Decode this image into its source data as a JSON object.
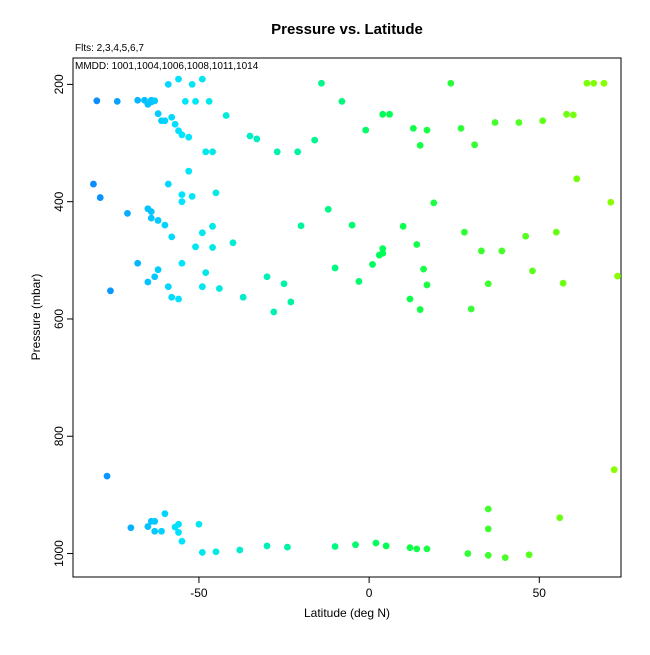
{
  "chart_data": {
    "type": "scatter",
    "title": "Pressure vs. Latitude",
    "subtitle_fits": "Flts: 2,3,4,5,6,7",
    "subtitle_dates": "MMDD: 1001,1004,1006,1008,1011,1014",
    "xlabel": "Latitude (deg N)",
    "ylabel": "Pressure (mbar)",
    "xlim": [
      -87,
      74
    ],
    "ylim": [
      1040,
      155
    ],
    "y_reversed": true,
    "grid": false,
    "x_ticks": [
      -50,
      0,
      50
    ],
    "x_tick_labels": [
      "-50",
      "0",
      "50"
    ],
    "y_ticks": [
      200,
      400,
      600,
      800,
      1000
    ],
    "y_tick_labels": [
      "200",
      "400",
      "600",
      "800",
      "1000"
    ],
    "color_note": "points colored by latitude from blue (south) through cyan and green to yellow-green (north)",
    "color_stops": [
      "#0b8cff",
      "#00e5ff",
      "#00ff55",
      "#88ff00"
    ],
    "points": [
      {
        "x": -80,
        "y": 228
      },
      {
        "x": -74,
        "y": 229
      },
      {
        "x": -68,
        "y": 227
      },
      {
        "x": -66,
        "y": 227
      },
      {
        "x": -65,
        "y": 234
      },
      {
        "x": -64,
        "y": 230
      },
      {
        "x": -64,
        "y": 227
      },
      {
        "x": -63,
        "y": 228
      },
      {
        "x": -62,
        "y": 250
      },
      {
        "x": -61,
        "y": 262
      },
      {
        "x": -60,
        "y": 262
      },
      {
        "x": -58,
        "y": 256
      },
      {
        "x": -57,
        "y": 268
      },
      {
        "x": -56,
        "y": 279
      },
      {
        "x": -55,
        "y": 286
      },
      {
        "x": -53,
        "y": 290
      },
      {
        "x": -59,
        "y": 200
      },
      {
        "x": -56,
        "y": 191
      },
      {
        "x": -52,
        "y": 200
      },
      {
        "x": -49,
        "y": 191
      },
      {
        "x": -54,
        "y": 229
      },
      {
        "x": -51,
        "y": 229
      },
      {
        "x": -47,
        "y": 229
      },
      {
        "x": -42,
        "y": 253
      },
      {
        "x": -48,
        "y": 315
      },
      {
        "x": -46,
        "y": 315
      },
      {
        "x": -35,
        "y": 288
      },
      {
        "x": -33,
        "y": 293
      },
      {
        "x": -27,
        "y": 315
      },
      {
        "x": -21,
        "y": 315
      },
      {
        "x": -16,
        "y": 295
      },
      {
        "x": -14,
        "y": 198
      },
      {
        "x": -8,
        "y": 229
      },
      {
        "x": -1,
        "y": 278
      },
      {
        "x": 4,
        "y": 251
      },
      {
        "x": 6,
        "y": 251
      },
      {
        "x": 13,
        "y": 275
      },
      {
        "x": 15,
        "y": 304
      },
      {
        "x": 17,
        "y": 278
      },
      {
        "x": 24,
        "y": 198
      },
      {
        "x": 27,
        "y": 275
      },
      {
        "x": 31,
        "y": 303
      },
      {
        "x": 37,
        "y": 265
      },
      {
        "x": 44,
        "y": 265
      },
      {
        "x": 51,
        "y": 262
      },
      {
        "x": 58,
        "y": 251
      },
      {
        "x": 60,
        "y": 252
      },
      {
        "x": 64,
        "y": 198
      },
      {
        "x": 66,
        "y": 198
      },
      {
        "x": 69,
        "y": 198
      },
      {
        "x": -81,
        "y": 370
      },
      {
        "x": -79,
        "y": 393
      },
      {
        "x": -71,
        "y": 420
      },
      {
        "x": -65,
        "y": 412
      },
      {
        "x": -64,
        "y": 417
      },
      {
        "x": -64,
        "y": 428
      },
      {
        "x": -62,
        "y": 432
      },
      {
        "x": -60,
        "y": 440
      },
      {
        "x": -59,
        "y": 370
      },
      {
        "x": -58,
        "y": 460
      },
      {
        "x": -55,
        "y": 400
      },
      {
        "x": -55,
        "y": 388
      },
      {
        "x": -53,
        "y": 348
      },
      {
        "x": -52,
        "y": 391
      },
      {
        "x": -49,
        "y": 453
      },
      {
        "x": -46,
        "y": 442
      },
      {
        "x": -45,
        "y": 385
      },
      {
        "x": -51,
        "y": 477
      },
      {
        "x": -46,
        "y": 478
      },
      {
        "x": -40,
        "y": 470
      },
      {
        "x": -20,
        "y": 441
      },
      {
        "x": -12,
        "y": 413
      },
      {
        "x": -5,
        "y": 440
      },
      {
        "x": 10,
        "y": 442
      },
      {
        "x": 14,
        "y": 473
      },
      {
        "x": 19,
        "y": 402
      },
      {
        "x": 28,
        "y": 452
      },
      {
        "x": 33,
        "y": 484
      },
      {
        "x": 39,
        "y": 484
      },
      {
        "x": 46,
        "y": 459
      },
      {
        "x": 55,
        "y": 452
      },
      {
        "x": 61,
        "y": 361
      },
      {
        "x": 71,
        "y": 401
      },
      {
        "x": -68,
        "y": 505
      },
      {
        "x": -63,
        "y": 528
      },
      {
        "x": -62,
        "y": 516
      },
      {
        "x": -65,
        "y": 537
      },
      {
        "x": -59,
        "y": 545
      },
      {
        "x": -55,
        "y": 505
      },
      {
        "x": -49,
        "y": 545
      },
      {
        "x": -48,
        "y": 521
      },
      {
        "x": -44,
        "y": 548
      },
      {
        "x": -76,
        "y": 552
      },
      {
        "x": -58,
        "y": 563
      },
      {
        "x": -56,
        "y": 566
      },
      {
        "x": -37,
        "y": 563
      },
      {
        "x": -30,
        "y": 528
      },
      {
        "x": -25,
        "y": 540
      },
      {
        "x": -28,
        "y": 588
      },
      {
        "x": -23,
        "y": 571
      },
      {
        "x": -10,
        "y": 513
      },
      {
        "x": -3,
        "y": 536
      },
      {
        "x": 1,
        "y": 507
      },
      {
        "x": 3,
        "y": 491
      },
      {
        "x": 4,
        "y": 480
      },
      {
        "x": 4,
        "y": 488
      },
      {
        "x": 12,
        "y": 566
      },
      {
        "x": 15,
        "y": 584
      },
      {
        "x": 16,
        "y": 515
      },
      {
        "x": 17,
        "y": 542
      },
      {
        "x": 30,
        "y": 583
      },
      {
        "x": 35,
        "y": 540
      },
      {
        "x": 48,
        "y": 518
      },
      {
        "x": 57,
        "y": 539
      },
      {
        "x": 73,
        "y": 527
      },
      {
        "x": -77,
        "y": 868
      },
      {
        "x": 72,
        "y": 857
      },
      {
        "x": -70,
        "y": 956
      },
      {
        "x": -65,
        "y": 954
      },
      {
        "x": -64,
        "y": 945
      },
      {
        "x": -63,
        "y": 945
      },
      {
        "x": -63,
        "y": 962
      },
      {
        "x": -61,
        "y": 962
      },
      {
        "x": -60,
        "y": 932
      },
      {
        "x": -57,
        "y": 955
      },
      {
        "x": -56,
        "y": 950
      },
      {
        "x": -56,
        "y": 964
      },
      {
        "x": -55,
        "y": 979
      },
      {
        "x": -50,
        "y": 950
      },
      {
        "x": -49,
        "y": 998
      },
      {
        "x": -45,
        "y": 997
      },
      {
        "x": -38,
        "y": 994
      },
      {
        "x": -30,
        "y": 987
      },
      {
        "x": -24,
        "y": 989
      },
      {
        "x": -10,
        "y": 988
      },
      {
        "x": -4,
        "y": 985
      },
      {
        "x": 2,
        "y": 982
      },
      {
        "x": 5,
        "y": 987
      },
      {
        "x": 12,
        "y": 990
      },
      {
        "x": 14,
        "y": 992
      },
      {
        "x": 17,
        "y": 992
      },
      {
        "x": 29,
        "y": 1000
      },
      {
        "x": 35,
        "y": 1003
      },
      {
        "x": 35,
        "y": 924
      },
      {
        "x": 35,
        "y": 958
      },
      {
        "x": 40,
        "y": 1007
      },
      {
        "x": 47,
        "y": 1002
      },
      {
        "x": 56,
        "y": 939
      }
    ]
  }
}
